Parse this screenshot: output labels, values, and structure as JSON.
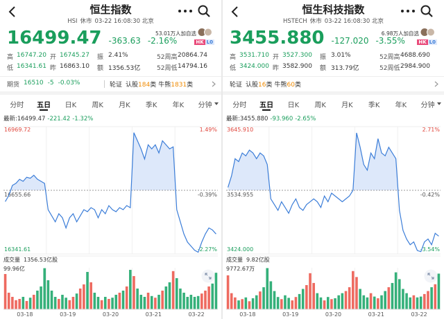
{
  "panels": [
    {
      "title": "恒生指数",
      "code": "HSI",
      "status": "休市",
      "time": "03-22 16:08:30 北京",
      "price": "16499.47",
      "change": "-363.63",
      "change_pct": "-2.16%",
      "followers": "53.01万人加自选",
      "badge": [
        "HK",
        "L0"
      ],
      "stats": [
        [
          "高",
          "16747.20"
        ],
        [
          "开",
          "16745.27"
        ],
        [
          "振",
          "2.41%"
        ],
        [
          "52周高",
          "20864.74"
        ],
        [
          "低",
          "16341.61"
        ],
        [
          "昨",
          "16863.10"
        ],
        [
          "额",
          "1356.53亿"
        ],
        [
          "52周低",
          "14794.16"
        ]
      ],
      "futures": [
        "期货",
        "16510",
        "-5",
        "-0.03%"
      ],
      "warrants": {
        "label": "轮证",
        "call": "认股",
        "call_count": "184",
        "bull": "牛熊",
        "bull_count": "1831",
        "unit": "类"
      },
      "tabs": [
        "分时",
        "五日",
        "日K",
        "周K",
        "月K",
        "季K",
        "年K",
        "分钟"
      ],
      "active_tab": 1,
      "latest": [
        "最新:16499.47",
        "-221.42",
        "-1.32%"
      ],
      "chart": {
        "type": "line",
        "color": "#3b7dd8",
        "ylim": [
          16341.61,
          16969.72
        ],
        "yticks": [
          16341.61,
          16655.66,
          16969.72
        ],
        "pct_labels": [
          "-2.27%",
          "-0.39%",
          "1.49%"
        ],
        "days": [
          "03-18",
          "03-19",
          "03-20",
          "03-21",
          "03-22"
        ],
        "price": [
          16600,
          16630,
          16680,
          16690,
          16710,
          16700,
          16720,
          16715,
          16730,
          16710,
          16700,
          16690,
          16560,
          16530,
          16500,
          16540,
          16520,
          16470,
          16520,
          16540,
          16500,
          16530,
          16560,
          16550,
          16570,
          16560,
          16520,
          16560,
          16540,
          16580,
          16560,
          16550,
          16570,
          16560,
          16580,
          16570,
          16940,
          16900,
          16860,
          16810,
          16880,
          16860,
          16880,
          16840,
          16900,
          16880,
          16860,
          16870,
          16560,
          16500,
          16440,
          16400,
          16380,
          16360,
          16350,
          16400,
          16440,
          16470,
          16460,
          16440
        ],
        "volume": [
          85,
          40,
          30,
          22,
          25,
          30,
          20,
          28,
          35,
          45,
          55,
          99,
          70,
          45,
          30,
          25,
          35,
          28,
          22,
          30,
          38,
          50,
          60,
          90,
          65,
          40,
          30,
          22,
          30,
          25,
          28,
          35,
          40,
          45,
          55,
          95,
          80,
          50,
          35,
          30,
          40,
          32,
          28,
          35,
          45,
          55,
          65,
          92,
          75,
          50,
          40,
          30,
          35,
          30,
          32,
          38,
          45,
          55,
          62,
          88
        ],
        "vol_label": "成交量",
        "vol_total": "1356.53亿股",
        "vol_max": {
          "value": 99.96,
          "label": "99.96亿"
        }
      }
    },
    {
      "title": "恒生科技指数",
      "code": "HSTECH",
      "status": "休市",
      "time": "03-22 16:08:30 北京",
      "price": "3455.880",
      "change": "-127.020",
      "change_pct": "-3.55%",
      "followers": "6.98万人加自选",
      "badge": [
        "HK",
        "L0"
      ],
      "stats": [
        [
          "高",
          "3531.710"
        ],
        [
          "开",
          "3527.300"
        ],
        [
          "振",
          "3.01%"
        ],
        [
          "52周高",
          "4688.690"
        ],
        [
          "低",
          "3424.000"
        ],
        [
          "昨",
          "3582.900"
        ],
        [
          "额",
          "313.79亿"
        ],
        [
          "52周低",
          "2984.900"
        ]
      ],
      "warrants": {
        "label": "轮证",
        "call": "认股",
        "call_count": "16",
        "bull": "牛熊",
        "bull_count": "60",
        "unit": "类"
      },
      "tabs": [
        "分时",
        "五日",
        "日K",
        "周K",
        "月K",
        "季K",
        "年K",
        "分钟"
      ],
      "active_tab": 1,
      "latest": [
        "最新:3455.880",
        "-93.960",
        "-2.65%"
      ],
      "chart": {
        "type": "line",
        "color": "#3b7dd8",
        "ylim": [
          3424,
          3645.91
        ],
        "yticks": [
          {
            "value": 3424,
            "label": "3424.000"
          },
          3534.955,
          {
            "value": 3645.91,
            "label": "3645.910"
          }
        ],
        "pct_labels": [
          "-3.54%",
          "-0.42%",
          "2.71%"
        ],
        "days": [
          "03-18",
          "03-19",
          "03-20",
          "03-21",
          "03-22"
        ],
        "price": [
          3540,
          3560,
          3590,
          3585,
          3600,
          3595,
          3605,
          3600,
          3590,
          3600,
          3595,
          3580,
          3520,
          3510,
          3500,
          3515,
          3505,
          3495,
          3510,
          3520,
          3505,
          3500,
          3510,
          3515,
          3520,
          3515,
          3505,
          3525,
          3515,
          3530,
          3525,
          3520,
          3515,
          3520,
          3525,
          3535,
          3635,
          3610,
          3580,
          3570,
          3600,
          3590,
          3625,
          3600,
          3595,
          3610,
          3600,
          3590,
          3500,
          3465,
          3450,
          3440,
          3445,
          3430,
          3428,
          3445,
          3450,
          3440,
          3460,
          3455
        ],
        "volume": [
          8000,
          3800,
          2800,
          2100,
          2400,
          2800,
          1900,
          2600,
          3300,
          4200,
          5200,
          9700,
          6600,
          4300,
          2900,
          2400,
          3300,
          2700,
          2100,
          2900,
          3600,
          4800,
          5700,
          8500,
          6200,
          3800,
          2800,
          2100,
          2900,
          2400,
          2600,
          3300,
          3800,
          4300,
          5200,
          9000,
          7600,
          4800,
          3300,
          2800,
          3800,
          3000,
          2600,
          3300,
          4300,
          5200,
          6200,
          8700,
          7100,
          4800,
          3800,
          2800,
          3300,
          2800,
          3000,
          3600,
          4300,
          5200,
          5900,
          8400
        ],
        "vol_label": "成交量",
        "vol_total": "9.82亿股",
        "vol_max": {
          "value": 9772.67,
          "label": "9772.67万"
        }
      }
    }
  ]
}
